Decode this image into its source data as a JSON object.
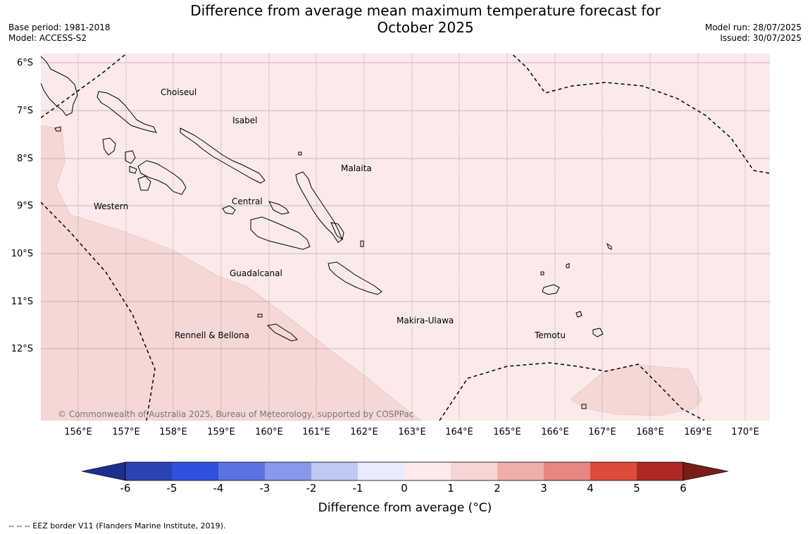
{
  "header": {
    "title_line1": "Difference from average mean maximum temperature forecast for",
    "title_line2": "October 2025",
    "base_period": "Base period: 1981-2018",
    "model": "Model: ACCESS-S2",
    "model_run": "Model run: 28/07/2025",
    "issued": "Issued: 30/07/2025"
  },
  "map": {
    "lat_labels": [
      "6°S",
      "7°S",
      "8°S",
      "9°S",
      "10°S",
      "11°S",
      "12°S"
    ],
    "lon_labels": [
      "156°E",
      "157°E",
      "158°E",
      "159°E",
      "160°E",
      "161°E",
      "162°E",
      "163°E",
      "164°E",
      "165°E",
      "166°E",
      "167°E",
      "168°E",
      "169°E",
      "170°E"
    ],
    "regions": {
      "choiseul": "Choiseul",
      "isabel": "Isabel",
      "malaita": "Malaita",
      "western": "Western",
      "central": "Central",
      "guadalcanal": "Guadalcanal",
      "makira": "Makira-Ulawa",
      "rennell": "Rennell & Bellona",
      "temotu": "Temotu"
    },
    "copyright": "© Commonwealth of Australia 2025, Bureau of Meteorology, supported by COSPPac",
    "fill_colors": {
      "zero_to_one": "#fbeaea",
      "one_to_two": "#f5d7d6"
    }
  },
  "colorbar": {
    "labels": [
      "-6",
      "-5",
      "-4",
      "-3",
      "-2",
      "-1",
      "0",
      "1",
      "2",
      "3",
      "4",
      "5",
      "6"
    ],
    "colors": [
      "#1d2f8c",
      "#2a44b4",
      "#3150e0",
      "#5a72e2",
      "#8898ea",
      "#c0c8f4",
      "#e8ecfc",
      "#fdeaea",
      "#f5d6d4",
      "#eeaeaa",
      "#e68781",
      "#de4a3d",
      "#ae2921",
      "#7a1d18"
    ],
    "title": "Difference from average (°C)"
  },
  "footer": {
    "eez_note": "-- -- -- EEZ border V11 (Flanders Marine Institute, 2019)."
  }
}
